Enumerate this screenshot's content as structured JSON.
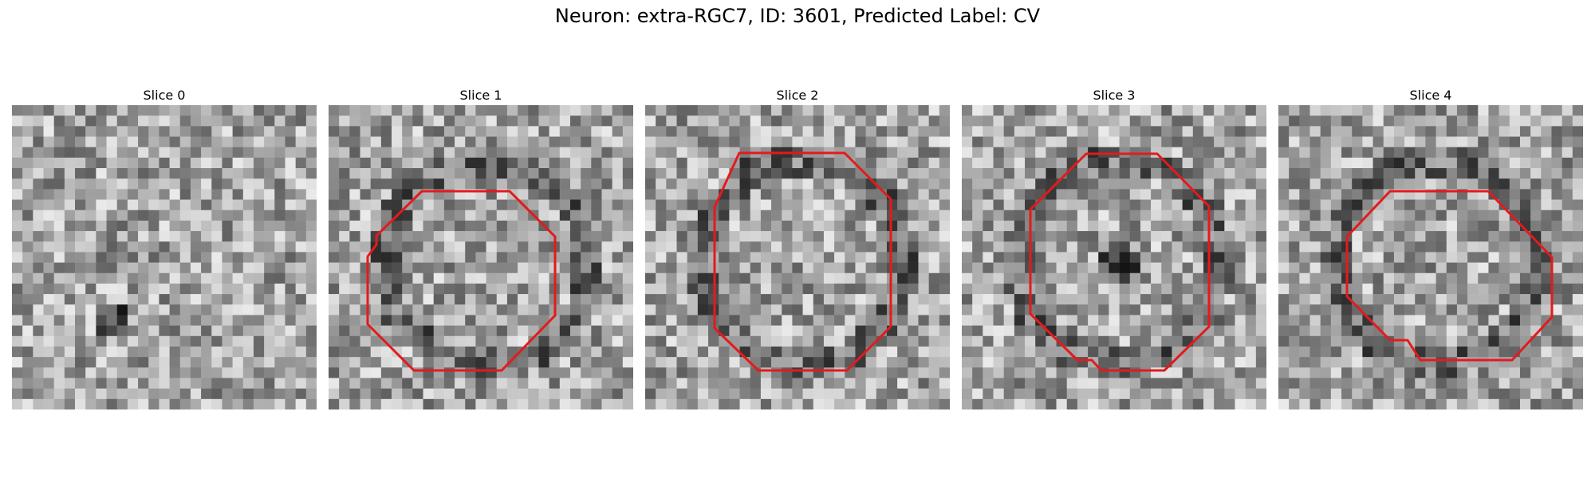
{
  "figure": {
    "title": "Neuron: extra-RGC7, ID: 3601, Predicted Label: CV"
  },
  "panels": [
    {
      "title": "Slice 0",
      "seed": 11,
      "has_outline": false
    },
    {
      "title": "Slice 1",
      "seed": 23,
      "has_outline": true,
      "outline_color": "#e41a1c"
    },
    {
      "title": "Slice 2",
      "seed": 37,
      "has_outline": true,
      "outline_color": "#e41a1c"
    },
    {
      "title": "Slice 3",
      "seed": 41,
      "has_outline": true,
      "outline_color": "#e41a1c"
    },
    {
      "title": "Slice 4",
      "seed": 59,
      "has_outline": true,
      "outline_color": "#e41a1c"
    }
  ],
  "style": {
    "colormap": "grayscale",
    "outline_color": "#e41a1c"
  }
}
